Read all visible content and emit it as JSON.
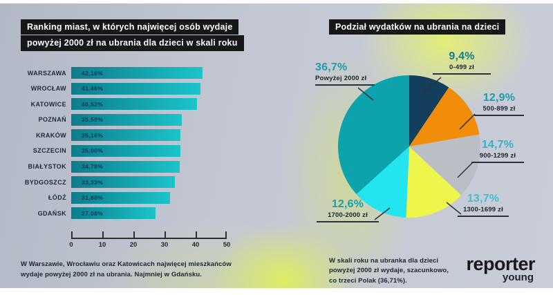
{
  "header": {
    "left_title_line1": "Ranking miast, w których najwięcej osób wydaje",
    "left_title_line2": "powyżej 2000 zł na ubrania dla dzieci w skali roku",
    "right_title": "Podział wydatków na ubrania na dzieci"
  },
  "footnotes": {
    "left_line1": "W Warszawie, Wrocławiu oraz Katowicach najwięcej mieszkańców",
    "left_line2": "wydaje powyżej 2000 zł na ubrania. Najmniej w Gdańsku.",
    "right_line1": "W skali roku na ubranka dla dzieci",
    "right_line2": "powyżej 2000 zł wydaje, szacunkowo,",
    "right_line3": "co trzeci Polak (36,71%)."
  },
  "logo": {
    "primary": "reporter",
    "secondary": "young"
  },
  "chart_data": [
    {
      "type": "bar",
      "orientation": "horizontal",
      "title": "Ranking miast, w których najwięcej osób wydaje powyżej 2000 zł na ubrania dla dzieci w skali roku",
      "categories": [
        "WARSZAWA",
        "WROCŁAW",
        "KATOWICE",
        "POZNAŃ",
        "KRAKÓW",
        "SZCZECIN",
        "BIAŁYSTOK",
        "BYDGOSZCZ",
        "ŁÓDŹ",
        "GDAŃSK"
      ],
      "values": [
        42.16,
        41.46,
        40.52,
        35.59,
        35.16,
        35.0,
        34.78,
        33.33,
        31.88,
        27.08
      ],
      "value_labels": [
        "42,16%",
        "41,46%",
        "40,52%",
        "35,59%",
        "35,16%",
        "35,00%",
        "34,78%",
        "33,33%",
        "31,88%",
        "27,08%"
      ],
      "xlim": [
        0,
        50
      ],
      "x_ticks": [
        0,
        10,
        20,
        30,
        40,
        50
      ],
      "grid": false,
      "bar_color_start": "#0e7c8c",
      "bar_color_end": "#1ac4ca",
      "value_text_color": "#0e3953"
    },
    {
      "type": "pie",
      "title": "Podział wydatków na ubrania na dzieci",
      "labels": [
        "0-499 zł",
        "500-899 zł",
        "900-1299 zł",
        "1300-1699 zł",
        "1700-2000 zł",
        "Powyżej 2000 zł"
      ],
      "values": [
        9.4,
        12.9,
        14.7,
        13.7,
        12.6,
        36.7
      ],
      "value_labels": [
        "9,4%",
        "12,9%",
        "14,7%",
        "13,7%",
        "12,6%",
        "36,7%"
      ],
      "colors": [
        "#133f5d",
        "#f28d0c",
        "#babec5",
        "#eef54b",
        "#23e4ef",
        "#0da3ac"
      ],
      "label_colors": [
        "#107d92",
        "#1e9cae",
        "#33b1c7",
        "#41bdd3",
        "#18a0ac",
        "#1b9dae"
      ],
      "start_angle": "12-oclock",
      "direction": "clockwise",
      "legend_position": "around-slices"
    }
  ]
}
